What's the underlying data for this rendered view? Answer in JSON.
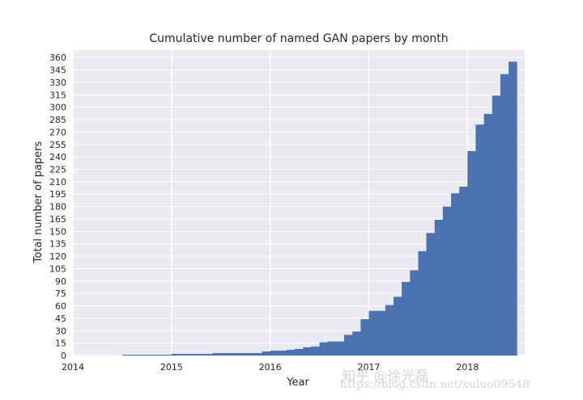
{
  "chart_data": {
    "type": "bar",
    "title": "Cumulative number of named GAN papers by month",
    "xlabel": "Year",
    "ylabel": "Total number of papers",
    "xlim": [
      2014,
      2018.58
    ],
    "ylim": [
      0,
      369
    ],
    "x_ticks": [
      "2014",
      "2015",
      "2016",
      "2017",
      "2018"
    ],
    "y_ticks": [
      0,
      15,
      30,
      45,
      60,
      75,
      90,
      105,
      120,
      135,
      150,
      165,
      180,
      195,
      210,
      225,
      240,
      255,
      270,
      285,
      300,
      315,
      330,
      345,
      360
    ],
    "grid": true,
    "bar_color": "#4c72b0",
    "background": "#eaeaf2",
    "series": [
      {
        "values": [
          {
            "x": 2014.5,
            "y": 1
          },
          {
            "x": 2014.583,
            "y": 1
          },
          {
            "x": 2014.667,
            "y": 1
          },
          {
            "x": 2014.75,
            "y": 1
          },
          {
            "x": 2014.833,
            "y": 1
          },
          {
            "x": 2014.917,
            "y": 1
          },
          {
            "x": 2015.0,
            "y": 2
          },
          {
            "x": 2015.083,
            "y": 2
          },
          {
            "x": 2015.167,
            "y": 2
          },
          {
            "x": 2015.25,
            "y": 2
          },
          {
            "x": 2015.333,
            "y": 2
          },
          {
            "x": 2015.417,
            "y": 3
          },
          {
            "x": 2015.5,
            "y": 3
          },
          {
            "x": 2015.583,
            "y": 3
          },
          {
            "x": 2015.667,
            "y": 3
          },
          {
            "x": 2015.75,
            "y": 3
          },
          {
            "x": 2015.833,
            "y": 3
          },
          {
            "x": 2015.917,
            "y": 5
          },
          {
            "x": 2016.0,
            "y": 6
          },
          {
            "x": 2016.083,
            "y": 6
          },
          {
            "x": 2016.167,
            "y": 7
          },
          {
            "x": 2016.25,
            "y": 8
          },
          {
            "x": 2016.333,
            "y": 10
          },
          {
            "x": 2016.417,
            "y": 11
          },
          {
            "x": 2016.5,
            "y": 16
          },
          {
            "x": 2016.583,
            "y": 17
          },
          {
            "x": 2016.667,
            "y": 17
          },
          {
            "x": 2016.75,
            "y": 25
          },
          {
            "x": 2016.833,
            "y": 29
          },
          {
            "x": 2016.917,
            "y": 44
          },
          {
            "x": 2017.0,
            "y": 54
          },
          {
            "x": 2017.083,
            "y": 54
          },
          {
            "x": 2017.167,
            "y": 61
          },
          {
            "x": 2017.25,
            "y": 71
          },
          {
            "x": 2017.333,
            "y": 89
          },
          {
            "x": 2017.417,
            "y": 103
          },
          {
            "x": 2017.5,
            "y": 126
          },
          {
            "x": 2017.583,
            "y": 148
          },
          {
            "x": 2017.667,
            "y": 164
          },
          {
            "x": 2017.75,
            "y": 180
          },
          {
            "x": 2017.833,
            "y": 196
          },
          {
            "x": 2017.917,
            "y": 204
          },
          {
            "x": 2018.0,
            "y": 247
          },
          {
            "x": 2018.083,
            "y": 279
          },
          {
            "x": 2018.167,
            "y": 292
          },
          {
            "x": 2018.25,
            "y": 314
          },
          {
            "x": 2018.333,
            "y": 340
          },
          {
            "x": 2018.417,
            "y": 355
          }
        ],
        "bin_width": 0.0833
      }
    ]
  },
  "watermark": {
    "text": "知乎 @徐光磊",
    "url": "https://blog.csdn.net/xuluo09548"
  }
}
